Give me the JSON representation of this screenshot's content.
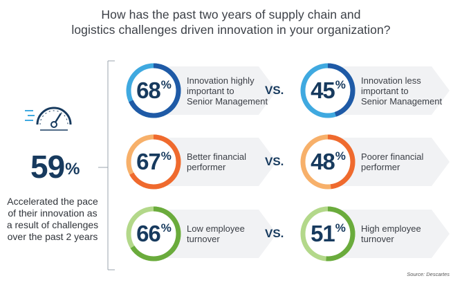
{
  "title_line1": "How has the past two years of supply chain and",
  "title_line2": "logistics challenges driven innovation in your organization?",
  "headline": {
    "value": "59",
    "suffix": "%",
    "desc": [
      "Accelerated the pace",
      "of their innovation as",
      "a result of challenges",
      "over the past 2 years"
    ]
  },
  "vs_label": "VS.",
  "source": "Source: Descartes",
  "colors": {
    "navy": "#173a5e",
    "blue_dark": "#1f5aa6",
    "blue_light": "#3fa9e0",
    "orange_dark": "#ef6a2e",
    "orange_light": "#f7b06a",
    "green_dark": "#6aab3c",
    "green_light": "#b3d88a",
    "panel": "#f1f2f4"
  },
  "chart_data": {
    "type": "table",
    "rows": [
      {
        "left": {
          "value": 68,
          "label": [
            "Innovation highly",
            "important to",
            "Senior Management"
          ]
        },
        "right": {
          "value": 45,
          "label": [
            "Innovation less",
            "important to",
            "Senior Management"
          ]
        },
        "colors": [
          "#1f5aa6",
          "#3fa9e0"
        ]
      },
      {
        "left": {
          "value": 67,
          "label": [
            "Better financial",
            "performer"
          ]
        },
        "right": {
          "value": 48,
          "label": [
            "Poorer financial",
            "performer"
          ]
        },
        "colors": [
          "#ef6a2e",
          "#f7b06a"
        ]
      },
      {
        "left": {
          "value": 66,
          "label": [
            "Low employee",
            "turnover"
          ]
        },
        "right": {
          "value": 51,
          "label": [
            "High employee",
            "turnover"
          ]
        },
        "colors": [
          "#6aab3c",
          "#b3d88a"
        ]
      }
    ]
  }
}
